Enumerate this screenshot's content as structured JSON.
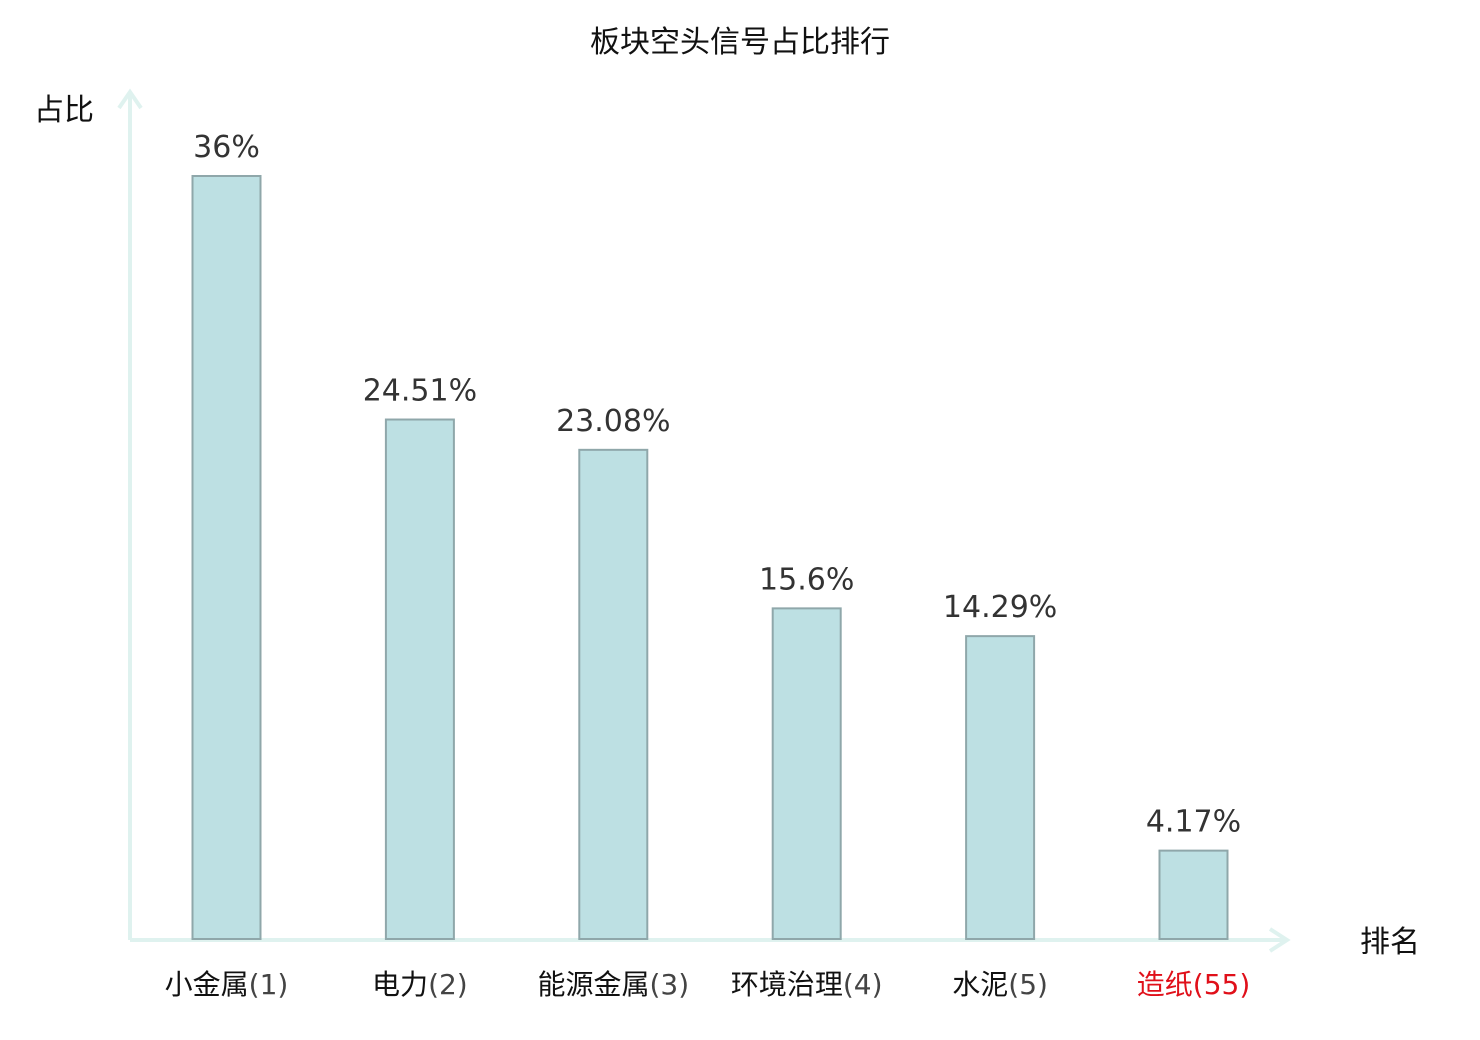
{
  "chart_data": {
    "type": "bar",
    "title": "板块空头信号占比排行",
    "ylabel": "占比",
    "xlabel": "排名",
    "ylim": [
      0,
      36
    ],
    "categories": [
      {
        "name": "小金属",
        "rank": "(1)",
        "highlight": false
      },
      {
        "name": "电力",
        "rank": "(2)",
        "highlight": false
      },
      {
        "name": "能源金属",
        "rank": "(3)",
        "highlight": false
      },
      {
        "name": "环境治理",
        "rank": "(4)",
        "highlight": false
      },
      {
        "name": "水泥",
        "rank": "(5)",
        "highlight": false
      },
      {
        "name": "造纸",
        "rank": "(55)",
        "highlight": true
      }
    ],
    "values": [
      36,
      24.51,
      23.08,
      15.6,
      14.29,
      4.17
    ],
    "value_labels": [
      "36%",
      "24.51%",
      "23.08%",
      "15.6%",
      "14.29%",
      "4.17%"
    ],
    "grid": false
  },
  "colors": {
    "bar_fill": "#bde0e3",
    "bar_stroke": "#8fa7aa",
    "axis": "#dff2ef",
    "text": "#111111",
    "value_text": "#333333",
    "rank_text": "#444444",
    "highlight": "#e0101a"
  }
}
